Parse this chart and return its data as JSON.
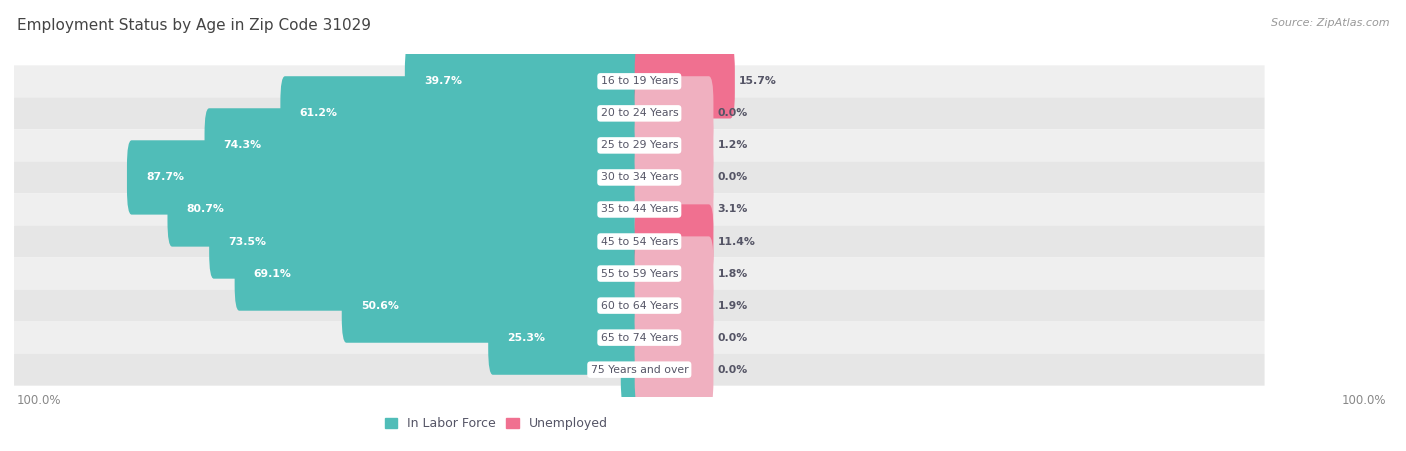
{
  "title": "Employment Status by Age in Zip Code 31029",
  "source": "Source: ZipAtlas.com",
  "categories": [
    "16 to 19 Years",
    "20 to 24 Years",
    "25 to 29 Years",
    "30 to 34 Years",
    "35 to 44 Years",
    "45 to 54 Years",
    "55 to 59 Years",
    "60 to 64 Years",
    "65 to 74 Years",
    "75 Years and over"
  ],
  "labor_force": [
    39.7,
    61.2,
    74.3,
    87.7,
    80.7,
    73.5,
    69.1,
    50.6,
    25.3,
    2.4
  ],
  "unemployed": [
    15.7,
    0.0,
    1.2,
    0.0,
    3.1,
    11.4,
    1.8,
    1.9,
    0.0,
    0.0
  ],
  "labor_force_color": "#50bdb8",
  "unemployed_color_strong": "#f07090",
  "unemployed_color_weak": "#f0b0c0",
  "bar_bg_even": "#efefef",
  "bar_bg_odd": "#e6e6e6",
  "label_inside_color": "#ffffff",
  "label_outside_color": "#555566",
  "center_label_color": "#555566",
  "axis_label_color": "#888888",
  "title_color": "#444444",
  "source_color": "#999999",
  "max_val": 100.0,
  "legend_labels": [
    "In Labor Force",
    "Unemployed"
  ],
  "legend_colors": [
    "#50bdb8",
    "#f07090"
  ],
  "unemp_threshold": 5.0,
  "lf_inside_threshold": 10.0,
  "min_unemp_display": 12.0
}
